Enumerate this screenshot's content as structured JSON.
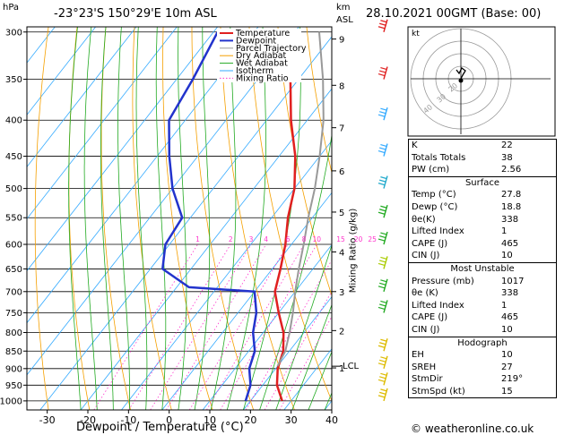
{
  "header": {
    "hpa_label": "hPa",
    "location": "-23°23'S  150°29'E  10m  ASL",
    "km_label": "km",
    "asl_label": "ASL",
    "datetime": "28.10.2021  00GMT  (Base: 00)"
  },
  "footer": {
    "credit": "© weatheronline.co.uk"
  },
  "hodograph": {
    "kt_label": "kt",
    "ring_labels": [
      "20",
      "30",
      "40"
    ]
  },
  "colors": {
    "temperature": "#e02020",
    "dewpoint": "#2233cc",
    "parcel": "#999999",
    "dry_adiabat": "#f5a000",
    "wet_adiabat": "#22aa22",
    "isotherm": "#33aaff",
    "mixing_ratio": "#ff33cc"
  },
  "chart_data": {
    "type": "line",
    "title": "",
    "xlabel": "Dewpoint / Temperature (°C)",
    "ylabel": "",
    "mixing_ratio_axis_label": "Mixing Ratio (g/kg)",
    "xlim": [
      -35,
      40
    ],
    "ylim": [
      1000,
      300
    ],
    "y_scale": "log",
    "x_ticks": [
      -30,
      -20,
      -10,
      0,
      10,
      20,
      30,
      40
    ],
    "pressure_ticks": [
      300,
      350,
      400,
      450,
      500,
      550,
      600,
      650,
      700,
      750,
      800,
      850,
      900,
      950,
      1000
    ],
    "km_ticks": [
      {
        "km": "9",
        "p": 307
      },
      {
        "km": "8",
        "p": 357
      },
      {
        "km": "7",
        "p": 410
      },
      {
        "km": "6",
        "p": 472
      },
      {
        "km": "5",
        "p": 540
      },
      {
        "km": "4",
        "p": 615
      },
      {
        "km": "3",
        "p": 700
      },
      {
        "km": "2",
        "p": 795
      },
      {
        "km": "1",
        "p": 898
      }
    ],
    "lcl": {
      "label": "LCL",
      "p": 893
    },
    "mixing_ratio_labels": [
      "1",
      "2",
      "3",
      "4",
      "6",
      "8",
      "10",
      "15",
      "20",
      "25"
    ],
    "mixing_ratio_values": [
      1,
      2,
      3,
      4,
      6,
      8,
      10,
      15,
      20,
      25
    ],
    "legend": {
      "position": "top-left",
      "entries": [
        "Temperature",
        "Dewpoint",
        "Parcel Trajectory",
        "Dry Adiabat",
        "Wet Adiabat",
        "Isotherm",
        "Mixing Ratio"
      ]
    },
    "series": [
      {
        "name": "Temperature",
        "p": [
          1000,
          950,
          900,
          850,
          800,
          750,
          700,
          650,
          600,
          550,
          500,
          450,
          400,
          350,
          300
        ],
        "t": [
          27.8,
          23.5,
          20.5,
          18.5,
          15,
          10,
          5,
          2,
          -1.5,
          -6,
          -10,
          -16,
          -24,
          -32,
          -40
        ]
      },
      {
        "name": "Dewpoint",
        "p": [
          1000,
          950,
          900,
          850,
          800,
          750,
          700,
          690,
          650,
          600,
          550,
          500,
          450,
          400,
          350,
          300
        ],
        "t": [
          18.8,
          17,
          13.5,
          11.5,
          7.5,
          4.5,
          0,
          -17,
          -27,
          -31,
          -32,
          -40,
          -47,
          -54,
          -56,
          -59
        ]
      },
      {
        "name": "Parcel Trajectory",
        "p": [
          893,
          850,
          800,
          750,
          700,
          650,
          600,
          550,
          500,
          450,
          400,
          350,
          300
        ],
        "t": [
          20,
          19,
          16.5,
          13.5,
          10,
          6.5,
          3,
          -1,
          -5,
          -10,
          -16,
          -24,
          -34
        ]
      }
    ]
  },
  "indices": [
    {
      "label": "K",
      "value": "22"
    },
    {
      "label": "Totals Totals",
      "value": "38"
    },
    {
      "label": "PW (cm)",
      "value": "2.56"
    }
  ],
  "surface": {
    "title": "Surface",
    "rows": [
      {
        "label": "Temp (°C)",
        "value": "27.8"
      },
      {
        "label": "Dewp (°C)",
        "value": "18.8"
      },
      {
        "label": "θe(K)",
        "value": "338"
      },
      {
        "label": "Lifted Index",
        "value": "1"
      },
      {
        "label": "CAPE (J)",
        "value": "465"
      },
      {
        "label": "CIN (J)",
        "value": "10"
      }
    ]
  },
  "most_unstable": {
    "title": "Most Unstable",
    "rows": [
      {
        "label": "Pressure (mb)",
        "value": "1017"
      },
      {
        "label": "θe (K)",
        "value": "338"
      },
      {
        "label": "Lifted Index",
        "value": "1"
      },
      {
        "label": "CAPE (J)",
        "value": "465"
      },
      {
        "label": "CIN (J)",
        "value": "10"
      }
    ]
  },
  "hodograph_table": {
    "title": "Hodograph",
    "rows": [
      {
        "label": "EH",
        "value": "10"
      },
      {
        "label": "SREH",
        "value": "27"
      },
      {
        "label": "StmDir",
        "value": "219°"
      },
      {
        "label": "StmSpd (kt)",
        "value": "15"
      }
    ]
  }
}
